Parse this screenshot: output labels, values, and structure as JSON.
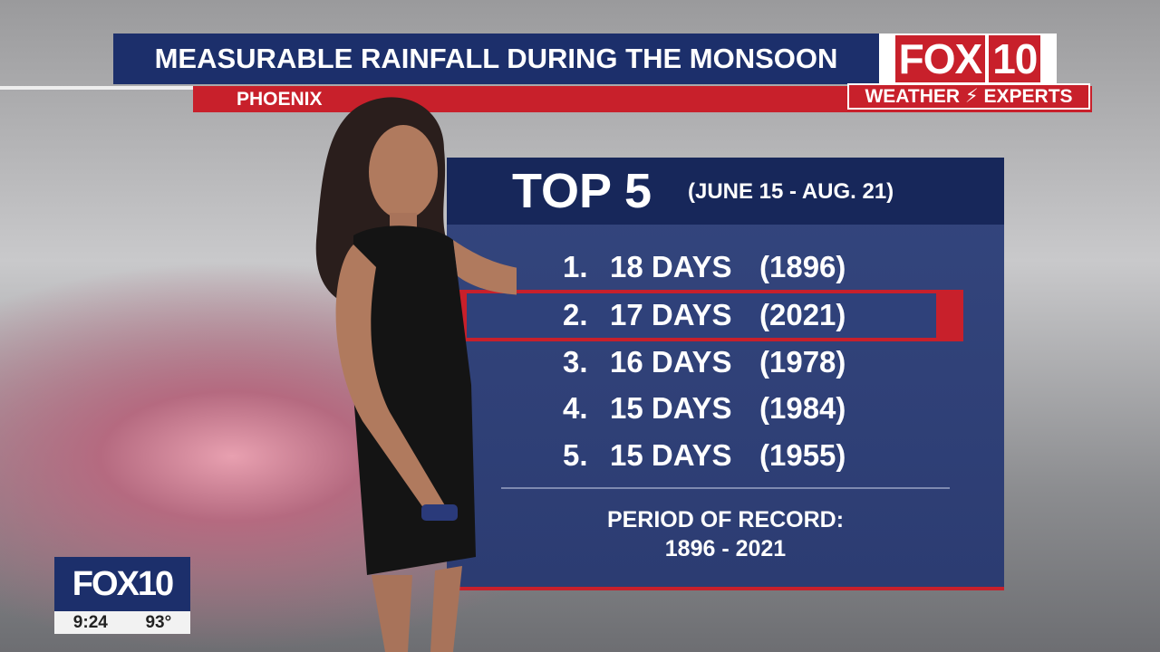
{
  "header": {
    "title": "MEASURABLE RAINFALL DURING THE MONSOON",
    "location": "PHOENIX"
  },
  "logo": {
    "brand": "FOX",
    "number": "10",
    "weather": "WEATHER",
    "experts": "EXPERTS"
  },
  "panel": {
    "title": "TOP 5",
    "period": "(JUNE 15 - AUG. 21)",
    "rows": [
      [
        "1.",
        "18 DAYS",
        "(1896)"
      ],
      [
        "2.",
        "17 DAYS",
        "(2021)"
      ],
      [
        "3.",
        "16 DAYS",
        "(1978)"
      ],
      [
        "4.",
        "15 DAYS",
        "(1984)"
      ],
      [
        "5.",
        "15 DAYS",
        "(1955)"
      ]
    ],
    "footer_label": "PERIOD OF RECORD:",
    "footer_range": "1896 - 2021"
  },
  "bug": {
    "brand": "FOX10",
    "time": "9:24",
    "temperature": "93°"
  }
}
